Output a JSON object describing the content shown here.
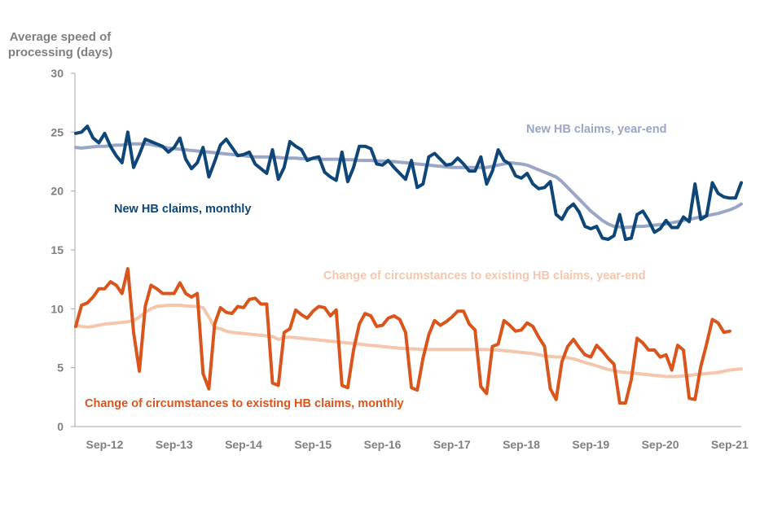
{
  "chart_data": {
    "type": "line",
    "ylabel_lines": [
      "Average speed of",
      "processing (days)"
    ],
    "xlabel": "",
    "ylim": [
      0,
      30
    ],
    "yticks": [
      "0",
      "5",
      "10",
      "15",
      "20",
      "25",
      "30"
    ],
    "x_start": "2012-04",
    "x_end": "2021-09",
    "xtick_labels": [
      "Sep-12",
      "Sep-13",
      "Sep-14",
      "Sep-15",
      "Sep-16",
      "Sep-17",
      "Sep-18",
      "Sep-19",
      "Sep-20",
      "Sep-21"
    ],
    "series": [
      {
        "name": "New HB claims, monthly",
        "label": "New HB claims, monthly",
        "color": "#0e4678",
        "width": 4,
        "values": [
          24.9,
          25.0,
          25.5,
          24.5,
          24.1,
          24.9,
          23.8,
          23.0,
          22.4,
          25.0,
          22.0,
          23.1,
          24.4,
          24.2,
          24.0,
          23.8,
          23.3,
          23.7,
          24.5,
          22.7,
          21.9,
          22.4,
          23.7,
          21.2,
          22.5,
          23.9,
          24.4,
          23.7,
          23.0,
          23.1,
          23.3,
          22.3,
          21.9,
          21.5,
          23.5,
          21.0,
          22.0,
          24.2,
          23.8,
          23.5,
          22.6,
          22.8,
          22.9,
          21.6,
          21.2,
          20.9,
          23.3,
          20.8,
          22.0,
          23.8,
          23.8,
          23.6,
          22.3,
          22.2,
          22.6,
          22.0,
          21.5,
          21.0,
          22.6,
          20.3,
          20.6,
          22.9,
          23.2,
          22.7,
          22.2,
          22.3,
          22.8,
          22.3,
          21.7,
          21.7,
          22.9,
          20.6,
          21.7,
          23.5,
          22.6,
          22.3,
          21.3,
          21.1,
          21.5,
          20.6,
          20.2,
          20.3,
          20.8,
          18.0,
          17.6,
          18.5,
          18.9,
          18.2,
          17.0,
          16.8,
          17.0,
          16.0,
          15.9,
          16.2,
          18.0,
          15.9,
          16.0,
          18.0,
          18.3,
          17.5,
          16.5,
          16.8,
          17.5,
          16.9,
          16.9,
          17.8,
          17.4,
          20.6,
          17.6,
          17.9,
          20.7,
          19.8,
          19.5,
          19.4,
          19.4,
          20.7
        ],
        "label_position": "left-middle"
      },
      {
        "name": "New HB claims, year-end",
        "label": "New HB claims, year-end",
        "color": "#9aa6c6",
        "width": 4,
        "values": [
          23.7,
          23.65,
          23.7,
          23.75,
          23.8,
          23.8,
          23.85,
          23.9,
          23.9,
          24.0,
          24.0,
          24.0,
          24.0,
          23.95,
          23.85,
          23.75,
          23.65,
          23.6,
          23.55,
          23.5,
          23.45,
          23.4,
          23.35,
          23.3,
          23.25,
          23.2,
          23.15,
          23.1,
          23.05,
          23.0,
          22.95,
          22.9,
          22.9,
          22.9,
          22.85,
          22.85,
          22.8,
          22.8,
          22.8,
          22.75,
          22.75,
          22.75,
          22.7,
          22.7,
          22.7,
          22.7,
          22.65,
          22.65,
          22.65,
          22.6,
          22.6,
          22.6,
          22.55,
          22.55,
          22.5,
          22.5,
          22.45,
          22.4,
          22.35,
          22.3,
          22.25,
          22.2,
          22.15,
          22.1,
          22.05,
          22.0,
          22.0,
          22.0,
          22.0,
          22.0,
          22.0,
          22.0,
          22.1,
          22.2,
          22.3,
          22.4,
          22.35,
          22.3,
          22.2,
          22.0,
          21.8,
          21.6,
          21.4,
          21.2,
          20.8,
          20.3,
          19.8,
          19.3,
          18.8,
          18.3,
          17.9,
          17.5,
          17.2,
          17.0,
          16.95,
          16.9,
          16.95,
          17.0,
          17.0,
          17.05,
          17.1,
          17.15,
          17.2,
          17.3,
          17.4,
          17.5,
          17.6,
          17.7,
          17.8,
          17.9,
          18.0,
          18.1,
          18.25,
          18.4,
          18.6,
          18.9
        ],
        "label_position": "top-right"
      },
      {
        "name": "Change of circumstances to existing HB claims, monthly",
        "label": "Change of circumstances to existing HB claims, monthly",
        "color": "#d9551b",
        "width": 4,
        "values": [
          8.5,
          10.3,
          10.5,
          11.0,
          11.7,
          11.7,
          12.3,
          12.0,
          11.3,
          13.4,
          8.0,
          4.7,
          10.2,
          12.0,
          11.7,
          11.3,
          11.3,
          11.3,
          12.2,
          11.3,
          11.0,
          11.3,
          4.5,
          3.2,
          8.7,
          10.1,
          9.7,
          9.6,
          10.2,
          10.1,
          10.8,
          10.9,
          10.4,
          10.4,
          3.7,
          3.5,
          8.0,
          8.3,
          9.9,
          9.5,
          9.2,
          9.8,
          10.2,
          10.1,
          9.4,
          9.9,
          3.5,
          3.3,
          6.5,
          8.7,
          9.6,
          9.4,
          8.5,
          8.6,
          9.2,
          9.4,
          9.1,
          8.0,
          3.3,
          3.1,
          5.8,
          7.8,
          9.0,
          8.6,
          8.9,
          9.3,
          9.8,
          9.8,
          8.7,
          8.2,
          3.4,
          2.8,
          6.8,
          7.0,
          9.0,
          8.6,
          8.1,
          8.2,
          8.8,
          8.5,
          7.6,
          6.8,
          3.2,
          2.3,
          5.5,
          6.8,
          7.4,
          6.7,
          6.1,
          5.9,
          6.9,
          6.4,
          5.8,
          5.3,
          2.0,
          2.0,
          4.0,
          7.5,
          7.1,
          6.5,
          6.5,
          5.9,
          6.1,
          4.8,
          6.9,
          6.5,
          2.4,
          2.3,
          5.1,
          7.0,
          9.1,
          8.8,
          8.0,
          8.1
        ],
        "label_position": "bottom-left"
      },
      {
        "name": "Change of circumstances to existing HB claims, year-end",
        "label": "Change of circumstances to existing HB claims, year-end",
        "color": "#f4c7ad",
        "width": 4,
        "values": [
          8.6,
          8.5,
          8.45,
          8.5,
          8.6,
          8.7,
          8.75,
          8.8,
          8.85,
          8.9,
          9.0,
          9.3,
          9.7,
          10.0,
          10.2,
          10.25,
          10.3,
          10.3,
          10.3,
          10.25,
          10.2,
          10.2,
          10.1,
          9.3,
          8.4,
          8.3,
          8.1,
          8.0,
          7.95,
          7.9,
          7.85,
          7.8,
          7.75,
          7.7,
          7.65,
          7.4,
          7.55,
          7.6,
          7.55,
          7.5,
          7.45,
          7.4,
          7.35,
          7.3,
          7.25,
          7.2,
          7.15,
          7.1,
          7.05,
          7.0,
          6.95,
          6.9,
          6.85,
          6.8,
          6.75,
          6.7,
          6.65,
          6.62,
          6.6,
          6.58,
          6.55,
          6.55,
          6.55,
          6.55,
          6.55,
          6.55,
          6.55,
          6.55,
          6.55,
          6.55,
          6.55,
          6.55,
          6.5,
          6.5,
          6.45,
          6.4,
          6.35,
          6.3,
          6.25,
          6.2,
          6.1,
          6.0,
          5.95,
          5.9,
          5.9,
          5.85,
          5.75,
          5.6,
          5.45,
          5.3,
          5.15,
          5.0,
          4.85,
          4.75,
          4.65,
          4.6,
          4.55,
          4.5,
          4.45,
          4.4,
          4.35,
          4.3,
          4.25,
          4.25,
          4.25,
          4.3,
          4.35,
          4.4,
          4.45,
          4.5,
          4.55,
          4.6,
          4.7,
          4.8,
          4.85,
          4.9
        ],
        "label_position": "middle-right"
      }
    ]
  }
}
